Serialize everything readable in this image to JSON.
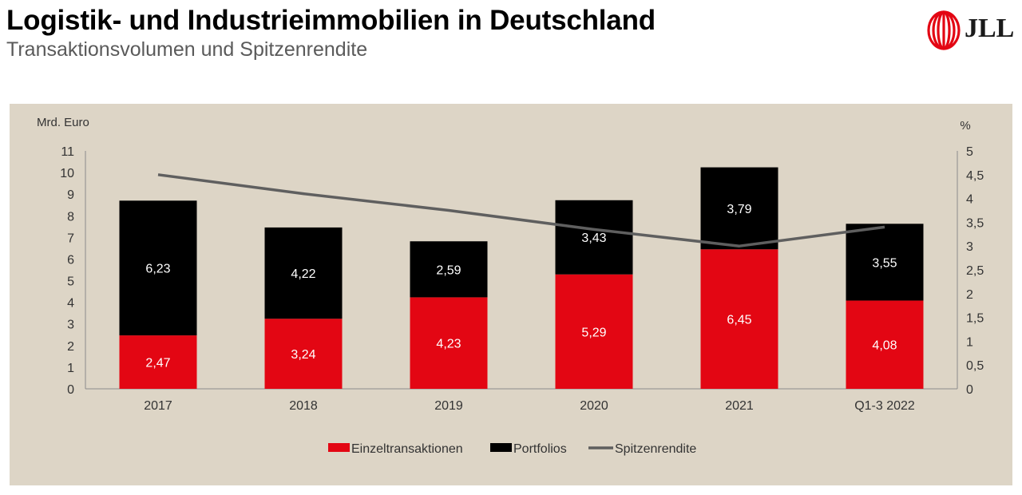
{
  "header": {
    "title": "Logistik- und Industrieimmobilien in Deutschland",
    "subtitle": "Transaktionsvolumen und Spitzenrendite"
  },
  "logo": {
    "text": "JLL",
    "icon": "jll-helix-logo-icon",
    "color": "#e30613"
  },
  "colors": {
    "panel_bg": "#ddd5c6",
    "einzeltransaktionen": "#e30613",
    "portfolios": "#000000",
    "spitzenrendite": "#5f5f5f"
  },
  "chart_data": {
    "type": "bar",
    "stacked": true,
    "categories": [
      "2017",
      "2018",
      "2019",
      "2020",
      "2021",
      "Q1-3 2022"
    ],
    "series": [
      {
        "name": "Einzeltransaktionen",
        "type": "bar",
        "axis": "left",
        "values": [
          2.47,
          3.24,
          4.23,
          5.29,
          6.45,
          4.08
        ],
        "labels": [
          "2,47",
          "3,24",
          "4,23",
          "5,29",
          "6,45",
          "4,08"
        ]
      },
      {
        "name": "Portfolios",
        "type": "bar",
        "axis": "left",
        "values": [
          6.23,
          4.22,
          2.59,
          3.43,
          3.79,
          3.55
        ],
        "labels": [
          "6,23",
          "4,22",
          "2,59",
          "3,43",
          "3,79",
          "3,55"
        ]
      },
      {
        "name": "Spitzenrendite",
        "type": "line",
        "axis": "right",
        "values": [
          4.5,
          4.1,
          3.75,
          3.35,
          3.0,
          3.4
        ]
      }
    ],
    "y_left": {
      "unit": "Mrd. Euro",
      "min": 0,
      "max": 11,
      "ticks": [
        "0",
        "1",
        "2",
        "3",
        "4",
        "5",
        "6",
        "7",
        "8",
        "9",
        "10",
        "11"
      ]
    },
    "y_right": {
      "unit": "%",
      "min": 0,
      "max": 5,
      "ticks": [
        "0",
        "0,5",
        "1",
        "1,5",
        "2",
        "2,5",
        "3",
        "3,5",
        "4",
        "4,5",
        "5"
      ]
    },
    "grid": false,
    "legend_position": "bottom"
  }
}
